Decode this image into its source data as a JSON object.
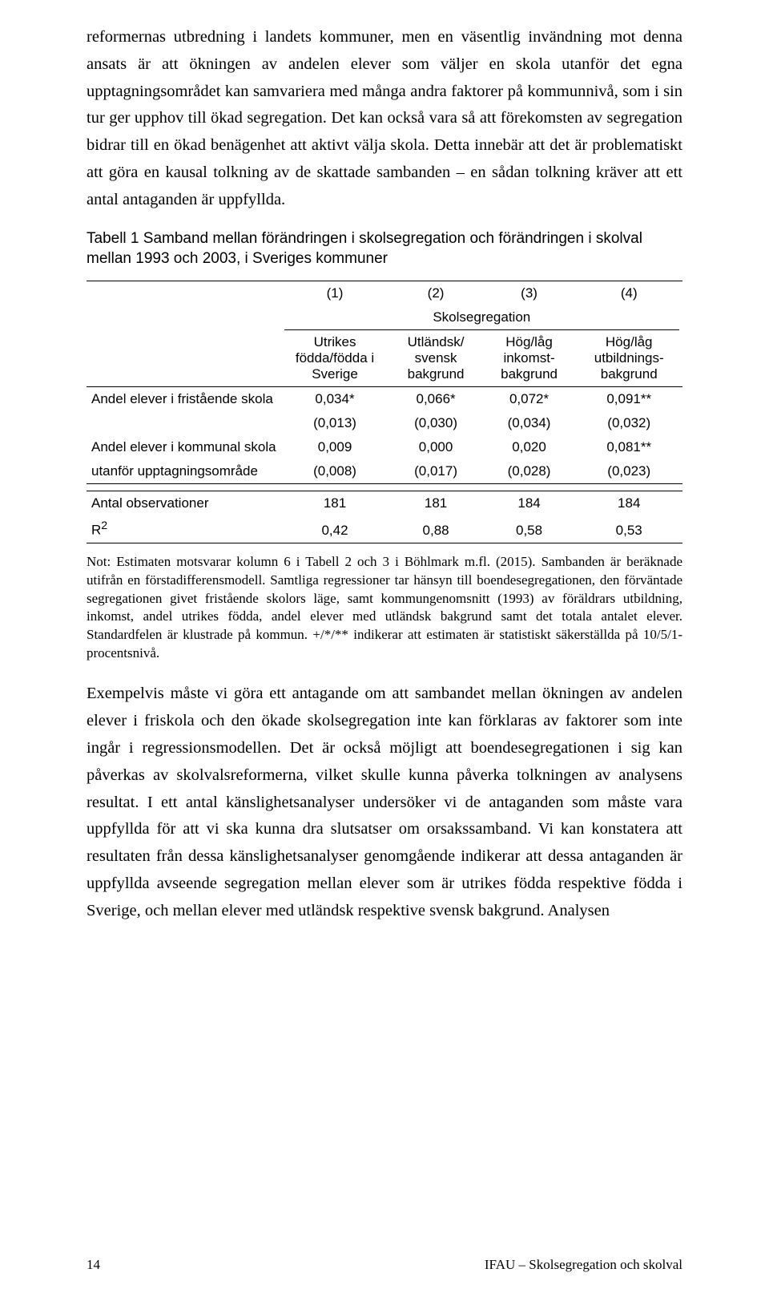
{
  "para1": "reformernas utbredning i landets kommuner, men en väsentlig invändning mot denna ansats är att ökningen av andelen elever som väljer en skola utanför det egna upptagningsområdet kan samvariera med många andra faktorer på kommunnivå, som i sin tur ger upphov till ökad segregation. Det kan också vara så att förekomsten av segregation bidrar till en ökad benägenhet att aktivt välja skola. Detta innebär att det är problematiskt att göra en kausal tolkning av de skattade sambanden – en sådan tolkning kräver att ett antal antaganden är uppfyllda.",
  "tableTitle": "Tabell 1 Samband mellan förändringen i skolsegregation och förändringen i skolval mellan 1993 och 2003, i Sveriges kommuner",
  "colNums": {
    "c1": "(1)",
    "c2": "(2)",
    "c3": "(3)",
    "c4": "(4)"
  },
  "spanner": "Skolsegregation",
  "headers": {
    "h1": "Utrikes födda/födda i Sverige",
    "h2": "Utländsk/ svensk bakgrund",
    "h3": "Hög/låg inkomst-bakgrund",
    "h4": "Hög/låg utbildnings-bakgrund"
  },
  "rows": {
    "r1label": "Andel elever i fristående skola",
    "r1": {
      "c1": "0,034*",
      "c2": "0,066*",
      "c3": "0,072*",
      "c4": "0,091**"
    },
    "r1se": {
      "c1": "(0,013)",
      "c2": "(0,030)",
      "c3": "(0,034)",
      "c4": "(0,032)"
    },
    "r2label": "Andel elever i kommunal skola",
    "r2": {
      "c1": "0,009",
      "c2": "0,000",
      "c3": "0,020",
      "c4": "0,081**"
    },
    "r3label": "utanför upptagningsområde",
    "r3": {
      "c1": "(0,008)",
      "c2": "(0,017)",
      "c3": "(0,028)",
      "c4": "(0,023)"
    },
    "obslabel": "Antal observationer",
    "obs": {
      "c1": "181",
      "c2": "181",
      "c3": "184",
      "c4": "184"
    },
    "r2label2": "R",
    "r2sup": "2",
    "r2r": {
      "c1": "0,42",
      "c2": "0,88",
      "c3": "0,58",
      "c4": "0,53"
    }
  },
  "note": "Not: Estimaten motsvarar kolumn 6 i Tabell 2 och 3 i Böhlmark m.fl. (2015). Sambanden är beräknade utifrån en förstadifferensmodell. Samtliga regressioner tar hänsyn till boendesegregationen, den förväntade segregationen givet fristående skolors läge, samt kommungenomsnitt (1993) av föräldrars utbildning, inkomst, andel utrikes födda, andel elever med utländsk bakgrund samt det totala antalet elever. Standardfelen är klustrade på kommun. +/*/** indikerar att estimaten är statistiskt säkerställda på 10/5/1-procentsnivå.",
  "para2": "Exempelvis måste vi göra ett antagande om att sambandet mellan ökningen av andelen elever i friskola och den ökade skolsegregation inte kan förklaras av faktorer som inte ingår i regressionsmodellen. Det är också möjligt att boendesegregationen i sig kan påverkas av skolvalsreformerna, vilket skulle kunna påverka tolkningen av analysens resultat. I ett antal känslighetsanalyser undersöker vi de antaganden som måste vara uppfyllda för att vi ska kunna dra slutsatser om orsakssamband. Vi kan konstatera att resultaten från dessa känslighetsanalyser genomgående indikerar att dessa antaganden är uppfyllda avseende segregation mellan elever som är utrikes födda respektive födda i Sverige, och mellan elever med utländsk respektive svensk bakgrund. Analysen",
  "footer": {
    "pageNum": "14",
    "runHead": "IFAU – Skolsegregation och skolval"
  }
}
